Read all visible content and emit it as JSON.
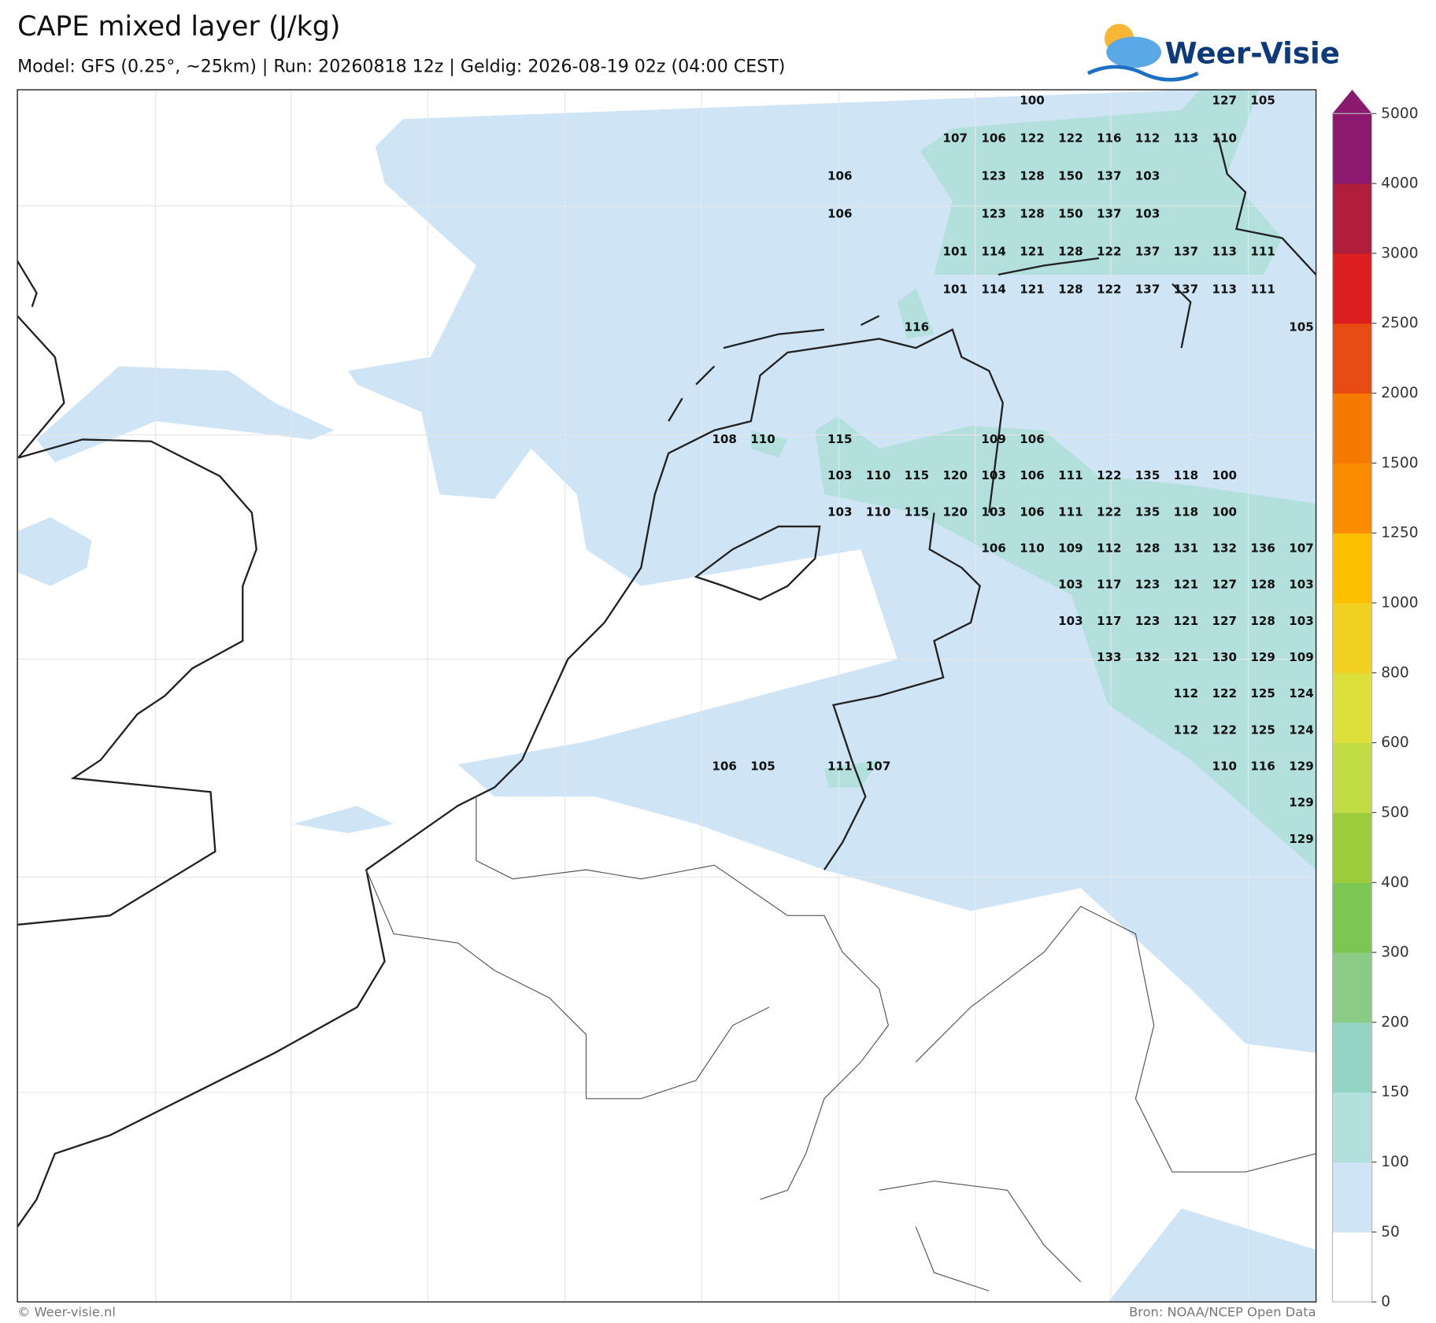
{
  "header": {
    "title": "CAPE mixed layer (J/kg)",
    "subtitle": "Model: GFS (0.25°, ~25km)  |  Run: 20260818 12z  |  Geldig: 2026-08-19 02z (04:00 CEST)",
    "logo": "Weer-Visie"
  },
  "map": {
    "grid_labels": [
      [
        null,
        null,
        null,
        null,
        null,
        null,
        null,
        null,
        100,
        null,
        null,
        null,
        null,
        127,
        105,
        null
      ],
      [
        null,
        null,
        null,
        null,
        null,
        null,
        107,
        106,
        122,
        122,
        116,
        112,
        113,
        110,
        null,
        null
      ],
      [
        null,
        null,
        null,
        106,
        null,
        null,
        null,
        123,
        128,
        150,
        137,
        103,
        null,
        null,
        null,
        null
      ],
      [
        null,
        null,
        null,
        106,
        null,
        null,
        null,
        123,
        128,
        150,
        137,
        103,
        null,
        null,
        null,
        null
      ],
      [
        null,
        null,
        null,
        null,
        null,
        null,
        101,
        114,
        121,
        128,
        122,
        137,
        137,
        113,
        111,
        null
      ],
      [
        null,
        null,
        null,
        null,
        null,
        null,
        101,
        114,
        121,
        128,
        122,
        137,
        137,
        113,
        111,
        null
      ],
      [
        null,
        null,
        null,
        null,
        null,
        116,
        null,
        null,
        null,
        null,
        null,
        null,
        null,
        null,
        null,
        105
      ],
      [
        null,
        null,
        null,
        null,
        null,
        null,
        null,
        null,
        null,
        null,
        null,
        null,
        null,
        null,
        null,
        null
      ],
      [
        null,
        null,
        null,
        null,
        null,
        null,
        null,
        null,
        null,
        null,
        null,
        null,
        null,
        null,
        null,
        null
      ],
      [
        108,
        110,
        null,
        115,
        null,
        null,
        null,
        109,
        106,
        null,
        null,
        null,
        null,
        null,
        null,
        null
      ],
      [
        null,
        null,
        null,
        103,
        110,
        115,
        120,
        103,
        106,
        111,
        122,
        135,
        118,
        100,
        null,
        null
      ],
      [
        null,
        null,
        null,
        103,
        110,
        115,
        120,
        103,
        106,
        111,
        122,
        135,
        118,
        100,
        null,
        null
      ],
      [
        null,
        null,
        null,
        null,
        null,
        null,
        null,
        106,
        110,
        109,
        112,
        128,
        131,
        132,
        136,
        107
      ],
      [
        null,
        null,
        null,
        null,
        null,
        null,
        null,
        null,
        null,
        103,
        117,
        123,
        121,
        127,
        128,
        103
      ],
      [
        null,
        null,
        null,
        null,
        null,
        null,
        null,
        null,
        null,
        103,
        117,
        123,
        121,
        127,
        128,
        103
      ],
      [
        null,
        null,
        null,
        null,
        null,
        null,
        null,
        null,
        null,
        null,
        133,
        132,
        121,
        130,
        129,
        109
      ],
      [
        null,
        null,
        null,
        null,
        null,
        null,
        null,
        null,
        null,
        null,
        null,
        null,
        112,
        122,
        125,
        124
      ],
      [
        null,
        null,
        null,
        null,
        null,
        null,
        null,
        null,
        null,
        null,
        null,
        null,
        112,
        122,
        125,
        124
      ],
      [
        106,
        105,
        null,
        111,
        107,
        null,
        null,
        null,
        null,
        null,
        null,
        null,
        null,
        110,
        116,
        129
      ],
      [
        null,
        null,
        null,
        null,
        null,
        null,
        null,
        null,
        null,
        null,
        null,
        null,
        null,
        null,
        null,
        129
      ],
      [
        null,
        null,
        null,
        null,
        null,
        null,
        null,
        null,
        null,
        null,
        null,
        null,
        null,
        null,
        null,
        129
      ]
    ]
  },
  "colorbar": {
    "levels": [
      0,
      50,
      100,
      150,
      200,
      300,
      400,
      500,
      600,
      800,
      1000,
      1250,
      1500,
      2000,
      2500,
      3000,
      4000,
      5000
    ],
    "colors": [
      "#ffffff",
      "#cfe5f5",
      "#b3e0dc",
      "#94d4c4",
      "#8acb86",
      "#7cc653",
      "#9ccc3c",
      "#c2dc44",
      "#dde03a",
      "#f0d020",
      "#fcc000",
      "#fa8c00",
      "#f57a00",
      "#e84c12",
      "#dc1e1e",
      "#b01e3c",
      "#8b1a6e"
    ],
    "extend_color": "#8b1a6e"
  },
  "footer": {
    "left": "© Weer-visie.nl",
    "right": "Bron: NOAA/NCEP Open Data"
  }
}
